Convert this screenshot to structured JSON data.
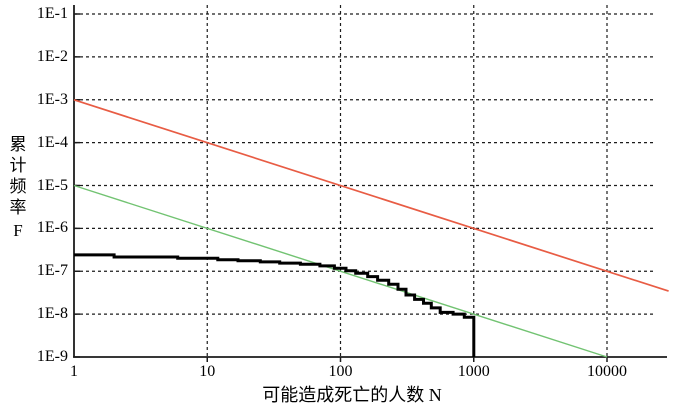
{
  "page": {
    "background": "#ffffff"
  },
  "chart_data": {
    "type": "line",
    "title": "",
    "xlabel": "可能造成死亡的人数 N",
    "ylabel": "累计频率 F",
    "x_scale": "log",
    "y_scale": "log",
    "xlim": [
      1,
      27600
    ],
    "ylim": [
      1e-09,
      0.1
    ],
    "grid": "black-dashed",
    "legend": "none",
    "x_ticks": [
      {
        "value": 1,
        "label": "1"
      },
      {
        "value": 10,
        "label": "10"
      },
      {
        "value": 100,
        "label": "100"
      },
      {
        "value": 1000,
        "label": "1000"
      },
      {
        "value": 10000,
        "label": "10000"
      }
    ],
    "y_ticks": [
      {
        "value": 0.1,
        "label": "1E-1"
      },
      {
        "value": 0.01,
        "label": "1E-2"
      },
      {
        "value": 0.001,
        "label": "1E-3"
      },
      {
        "value": 0.0001,
        "label": "1E-4"
      },
      {
        "value": 1e-05,
        "label": "1E-5"
      },
      {
        "value": 1e-06,
        "label": "1E-6"
      },
      {
        "value": 1e-07,
        "label": "1E-7"
      },
      {
        "value": 1e-08,
        "label": "1E-8"
      },
      {
        "value": 1e-09,
        "label": "1E-9"
      }
    ],
    "series": [
      {
        "name": "upper-criterion-line",
        "color": "#e85c44",
        "width": 1.7,
        "style": "straight",
        "points": [
          [
            1,
            0.001
          ],
          [
            29000,
            3.45e-08
          ]
        ]
      },
      {
        "name": "lower-criterion-line",
        "color": "#72c372",
        "width": 1.4,
        "style": "straight",
        "points": [
          [
            1,
            1e-05
          ],
          [
            10000,
            1e-09
          ]
        ]
      },
      {
        "name": "fn-curve",
        "color": "#000000",
        "width": 3,
        "style": "step",
        "points": [
          [
            1,
            2.4e-07
          ],
          [
            2,
            2.15e-07
          ],
          [
            6,
            2e-07
          ],
          [
            12,
            1.85e-07
          ],
          [
            17,
            1.75e-07
          ],
          [
            25,
            1.65e-07
          ],
          [
            35,
            1.55e-07
          ],
          [
            50,
            1.45e-07
          ],
          [
            70,
            1.33e-07
          ],
          [
            90,
            1.18e-07
          ],
          [
            110,
            1.03e-07
          ],
          [
            130,
            9e-08
          ],
          [
            160,
            7.5e-08
          ],
          [
            190,
            6.2e-08
          ],
          [
            230,
            5e-08
          ],
          [
            270,
            3.8e-08
          ],
          [
            310,
            2.8e-08
          ],
          [
            360,
            2.2e-08
          ],
          [
            420,
            1.8e-08
          ],
          [
            480,
            1.4e-08
          ],
          [
            560,
            1.1e-08
          ],
          [
            700,
            1e-08
          ],
          [
            850,
            8.5e-09
          ],
          [
            1000,
            1e-09
          ]
        ]
      }
    ]
  }
}
